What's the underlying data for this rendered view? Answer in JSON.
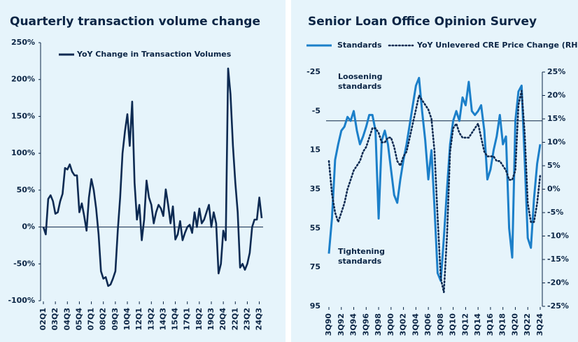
{
  "chart_data": [
    {
      "type": "line",
      "title": "Quarterly transaction volume change",
      "categories": [
        "02Q1",
        null,
        null,
        null,
        null,
        "03Q2",
        null,
        null,
        null,
        null,
        "04Q3",
        null,
        null,
        null,
        null,
        "05Q4",
        null,
        null,
        null,
        null,
        "07Q1",
        null,
        null,
        null,
        null,
        "08Q2",
        null,
        null,
        null,
        null,
        "09Q3",
        null,
        null,
        null,
        null,
        "10Q4",
        null,
        null,
        null,
        null,
        "12Q1",
        null,
        null,
        null,
        null,
        "13Q2",
        null,
        null,
        null,
        null,
        "14Q3",
        null,
        null,
        null,
        null,
        "15Q4",
        null,
        null,
        null,
        null,
        "17Q1",
        null,
        null,
        null,
        null,
        "18Q2",
        null,
        null,
        null,
        null,
        "19Q3",
        null,
        null,
        null,
        null,
        "20Q4",
        null,
        null,
        null,
        null,
        "22Q1",
        null,
        null,
        null,
        null,
        "23Q2",
        null,
        null,
        null,
        null,
        "24Q3",
        null
      ],
      "series": [
        {
          "name": "YoY Change in Transaction Volumes",
          "color": "#0d2a52",
          "values": [
            0,
            -10,
            38,
            43,
            35,
            18,
            20,
            35,
            45,
            80,
            78,
            85,
            75,
            70,
            70,
            20,
            32,
            15,
            -5,
            40,
            65,
            50,
            25,
            -10,
            -60,
            -70,
            -68,
            -80,
            -78,
            -70,
            -60,
            -5,
            40,
            100,
            130,
            153,
            110,
            170,
            60,
            10,
            30,
            -18,
            10,
            63,
            40,
            30,
            5,
            20,
            30,
            25,
            15,
            51,
            30,
            5,
            28,
            -17,
            -10,
            8,
            -18,
            -8,
            0,
            3,
            -8,
            20,
            0,
            25,
            5,
            10,
            20,
            30,
            0,
            20,
            5,
            -63,
            -50,
            -5,
            -18,
            215,
            180,
            110,
            60,
            20,
            -55,
            -50,
            -58,
            -50,
            -35,
            0,
            10,
            10,
            40,
            12
          ]
        }
      ],
      "ylim": [
        -100,
        250
      ],
      "yticks": [
        {
          "value": -100,
          "label": "-100%"
        },
        {
          "value": -50,
          "label": "-50%"
        },
        {
          "value": 0,
          "label": "0%"
        },
        {
          "value": 50,
          "label": "50%"
        },
        {
          "value": 100,
          "label": "100%"
        },
        {
          "value": 150,
          "label": "150%"
        },
        {
          "value": 200,
          "label": "200%"
        },
        {
          "value": 250,
          "label": "250%"
        }
      ],
      "hline_y": 0,
      "legend": "top-left",
      "grid": false
    },
    {
      "type": "line",
      "title": "Senior Loan Office Opinion Survey",
      "categories": [
        "3Q90",
        null,
        null,
        null,
        "3Q92",
        null,
        null,
        null,
        "3Q94",
        null,
        null,
        null,
        "3Q96",
        null,
        null,
        null,
        "3Q98",
        null,
        null,
        null,
        "3Q00",
        null,
        null,
        null,
        "3Q02",
        null,
        null,
        null,
        "3Q04",
        null,
        null,
        null,
        "3Q06",
        null,
        null,
        null,
        "3Q08",
        null,
        null,
        null,
        "3Q10",
        null,
        null,
        null,
        "3Q12",
        null,
        null,
        null,
        "3Q14",
        null,
        null,
        null,
        "3Q16",
        null,
        null,
        null,
        "3Q18",
        null,
        null,
        null,
        "3Q20",
        null,
        null,
        null,
        "3Q22",
        null,
        null,
        null,
        "3Q24"
      ],
      "series": [
        {
          "name": "Standards",
          "color": "#1b7fc9",
          "style": "solid",
          "values": [
            68,
            50,
            20,
            12,
            5,
            3,
            -2,
            0,
            -5,
            5,
            12,
            8,
            3,
            -3,
            -3,
            5,
            50,
            10,
            5,
            12,
            25,
            38,
            42,
            30,
            20,
            12,
            2,
            -8,
            -18,
            -22,
            -5,
            10,
            30,
            15,
            45,
            78,
            82,
            60,
            35,
            12,
            0,
            -5,
            0,
            -12,
            -8,
            -20,
            -5,
            -3,
            -5,
            -8,
            5,
            30,
            25,
            15,
            8,
            -3,
            12,
            8,
            55,
            70,
            0,
            -15,
            -18,
            20,
            60,
            65,
            40,
            22,
            12
          ]
        },
        {
          "name": "YoY Unlevered CRE Price Change (RHS)",
          "color": "#0d2a52",
          "style": "dotted",
          "axis": "y2",
          "values": [
            6,
            -1,
            -5,
            -7,
            -5,
            -3,
            0,
            2,
            4,
            5,
            6,
            8,
            9,
            11,
            13,
            13,
            12,
            10,
            10,
            11,
            11,
            9,
            6,
            5,
            7,
            8,
            11,
            14,
            17,
            20,
            19,
            18,
            17,
            15,
            8,
            -6,
            -19,
            -22,
            -10,
            8,
            13,
            14,
            12,
            11,
            11,
            11,
            12,
            13,
            14,
            11,
            8,
            7,
            7,
            7,
            6,
            6,
            5,
            4,
            2,
            2,
            4,
            18,
            21,
            12,
            -3,
            -7,
            -7,
            -3,
            3
          ]
        }
      ],
      "ylim": [
        -25,
        95
      ],
      "y_inverted": true,
      "yticks": [
        -25,
        -5,
        15,
        35,
        55,
        75,
        95
      ],
      "y2lim": [
        -25,
        25
      ],
      "y2ticks": [
        {
          "value": 25,
          "label": "25%"
        },
        {
          "value": 20,
          "label": "20%"
        },
        {
          "value": 15,
          "label": "15%"
        },
        {
          "value": 10,
          "label": "10%"
        },
        {
          "value": 5,
          "label": "5%"
        },
        {
          "value": 0,
          "label": "0%"
        },
        {
          "value": -5,
          "label": "-5%"
        },
        {
          "value": -10,
          "label": "-10%"
        },
        {
          "value": -15,
          "label": "-15%"
        },
        {
          "value": -20,
          "label": "-20%"
        },
        {
          "value": -25,
          "label": "-25%"
        }
      ],
      "hline_y": 0,
      "legend": "top",
      "grid": false,
      "annotations": [
        [
          "Loosening",
          "standards"
        ],
        [
          "Tightening",
          "standards"
        ]
      ]
    }
  ]
}
